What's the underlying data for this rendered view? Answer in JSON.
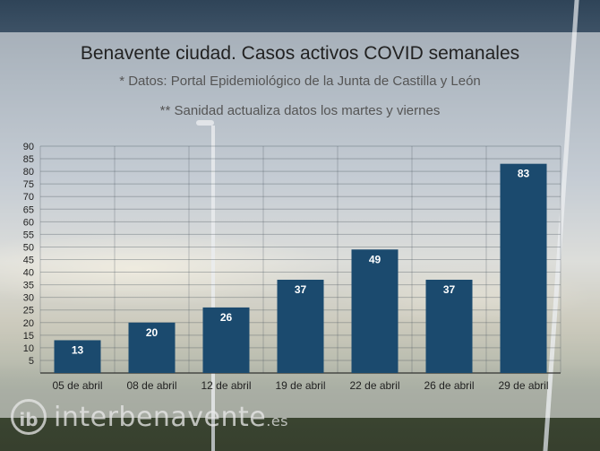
{
  "chart_data": {
    "type": "bar",
    "title": "Benavente ciudad. Casos activos COVID semanales",
    "subtitle": "* Datos: Portal Epidemiológico de la Junta de Castilla y León",
    "note": "** Sanidad actualiza datos los martes y viernes",
    "categories": [
      "05 de abril",
      "08 de abril",
      "12 de abril",
      "19 de abril",
      "22 de abril",
      "26 de abril",
      "29 de abril"
    ],
    "values": [
      13,
      20,
      26,
      37,
      49,
      37,
      83
    ],
    "ylim": [
      0,
      90
    ],
    "yticks": [
      5,
      10,
      15,
      20,
      25,
      30,
      35,
      40,
      45,
      50,
      55,
      60,
      65,
      70,
      75,
      80,
      85,
      90
    ],
    "bar_color": "#1b4a6e",
    "label_color": "#ffffff",
    "grid": true
  },
  "watermark": {
    "logo": "ib",
    "text": "interbenavente",
    "tld": ".es"
  }
}
